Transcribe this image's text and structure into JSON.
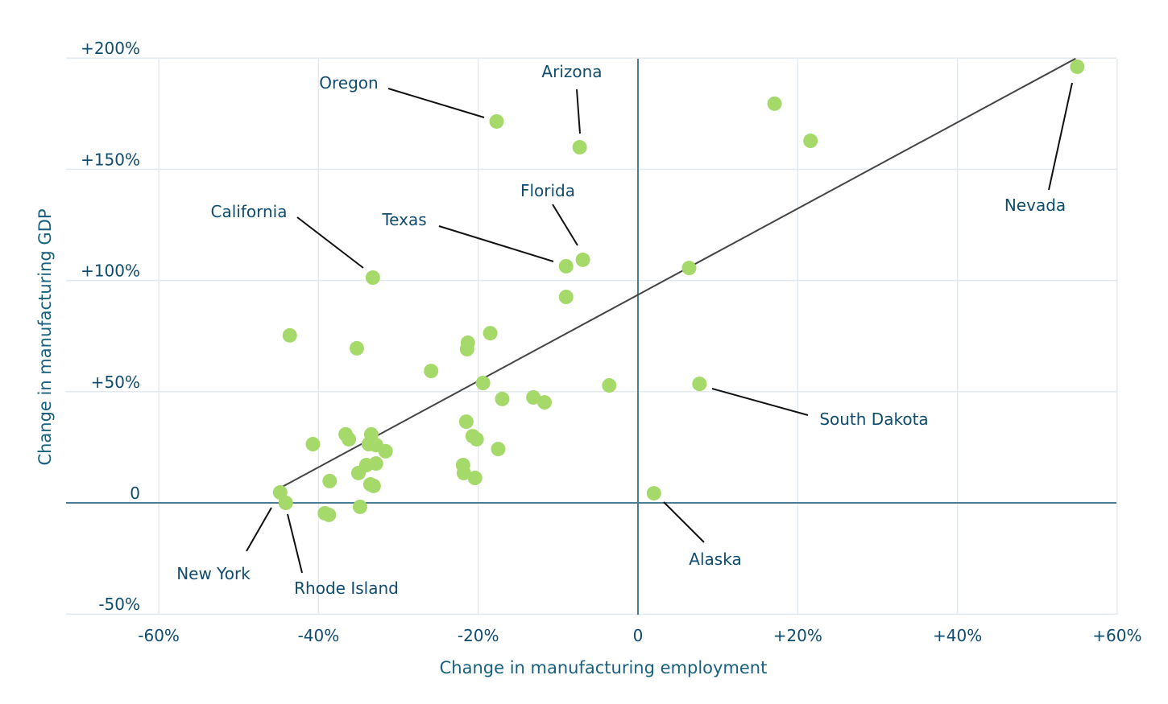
{
  "chart_data": {
    "type": "scatter",
    "title": "",
    "xlabel": "Change in manufacturing employment",
    "ylabel": "Change in manufacturing GDP",
    "xlim": [
      -72,
      60
    ],
    "ylim": [
      -50,
      200
    ],
    "grid": true,
    "x_ticks": [
      {
        "value": -60,
        "label": "-60%"
      },
      {
        "value": -40,
        "label": "-40%"
      },
      {
        "value": -20,
        "label": "-20%"
      },
      {
        "value": 0,
        "label": "0"
      },
      {
        "value": 20,
        "label": "+20%"
      },
      {
        "value": 40,
        "label": "+40%"
      },
      {
        "value": 60,
        "label": "+60%"
      }
    ],
    "y_ticks": [
      {
        "value": -50,
        "label": "-50%"
      },
      {
        "value": 0,
        "label": "0"
      },
      {
        "value": 50,
        "label": "+50%"
      },
      {
        "value": 100,
        "label": "+100%"
      },
      {
        "value": 150,
        "label": "+150%"
      },
      {
        "value": 200,
        "label": "+200%"
      }
    ],
    "dot_color": "#a5d96a",
    "trend_color": "#444444",
    "text_color": "#0f4c6e",
    "trendline": {
      "x": [
        -44.7,
        54.8
      ],
      "y": [
        6.9,
        199.8
      ]
    },
    "points": [
      {
        "x": 55.0,
        "y": 196.1,
        "label": "Nevada"
      },
      {
        "x": 17.1,
        "y": 179.5
      },
      {
        "x": 21.6,
        "y": 162.8
      },
      {
        "x": -17.7,
        "y": 171.5,
        "label": "Oregon"
      },
      {
        "x": -7.3,
        "y": 159.9,
        "label": "Arizona"
      },
      {
        "x": -6.9,
        "y": 109.3,
        "label": "Florida"
      },
      {
        "x": -9.0,
        "y": 106.4,
        "label": "Texas"
      },
      {
        "x": -9.0,
        "y": 92.6
      },
      {
        "x": 6.4,
        "y": 105.6
      },
      {
        "x": -33.2,
        "y": 101.3,
        "label": "California"
      },
      {
        "x": -43.6,
        "y": 75.3
      },
      {
        "x": -35.2,
        "y": 69.5
      },
      {
        "x": -21.3,
        "y": 72.0
      },
      {
        "x": -21.4,
        "y": 69.1
      },
      {
        "x": -18.5,
        "y": 76.3
      },
      {
        "x": -25.9,
        "y": 59.3
      },
      {
        "x": -19.4,
        "y": 53.9
      },
      {
        "x": -17.0,
        "y": 46.7
      },
      {
        "x": -13.1,
        "y": 47.4
      },
      {
        "x": -11.7,
        "y": 45.2
      },
      {
        "x": -3.6,
        "y": 52.8
      },
      {
        "x": 7.7,
        "y": 53.5,
        "label": "South Dakota"
      },
      {
        "x": -21.5,
        "y": 36.5
      },
      {
        "x": -20.7,
        "y": 30.0
      },
      {
        "x": -20.2,
        "y": 28.6
      },
      {
        "x": -17.5,
        "y": 24.2
      },
      {
        "x": -21.9,
        "y": 17.0
      },
      {
        "x": -21.8,
        "y": 13.4
      },
      {
        "x": -20.4,
        "y": 11.2
      },
      {
        "x": -36.6,
        "y": 30.8
      },
      {
        "x": -36.2,
        "y": 28.6
      },
      {
        "x": -33.4,
        "y": 30.8
      },
      {
        "x": -33.7,
        "y": 26.4
      },
      {
        "x": -32.8,
        "y": 26.0
      },
      {
        "x": -31.6,
        "y": 23.2
      },
      {
        "x": -40.7,
        "y": 26.4
      },
      {
        "x": -34.0,
        "y": 17.0
      },
      {
        "x": -32.8,
        "y": 17.7
      },
      {
        "x": -35.0,
        "y": 13.4
      },
      {
        "x": -38.6,
        "y": 9.8
      },
      {
        "x": -33.5,
        "y": 8.3
      },
      {
        "x": -33.1,
        "y": 7.6
      },
      {
        "x": -44.8,
        "y": 4.7,
        "label": "New York"
      },
      {
        "x": -44.1,
        "y": 0.0,
        "label": "Rhode Island"
      },
      {
        "x": -34.8,
        "y": -1.8
      },
      {
        "x": -39.2,
        "y": -4.7
      },
      {
        "x": -38.7,
        "y": -5.4
      },
      {
        "x": 2.0,
        "y": 4.3,
        "label": "Alaska"
      }
    ],
    "annotations": [
      {
        "text": "Oregon",
        "point": "Oregon"
      },
      {
        "text": "Arizona",
        "point": "Arizona"
      },
      {
        "text": "Florida",
        "point": "Florida"
      },
      {
        "text": "California",
        "point": "California"
      },
      {
        "text": "Texas",
        "point": "Texas"
      },
      {
        "text": "Nevada",
        "point": "Nevada"
      },
      {
        "text": "South Dakota",
        "point": "South Dakota"
      },
      {
        "text": "New York",
        "point": "New York"
      },
      {
        "text": "Rhode Island",
        "point": "Rhode Island"
      },
      {
        "text": "Alaska",
        "point": "Alaska"
      }
    ]
  }
}
